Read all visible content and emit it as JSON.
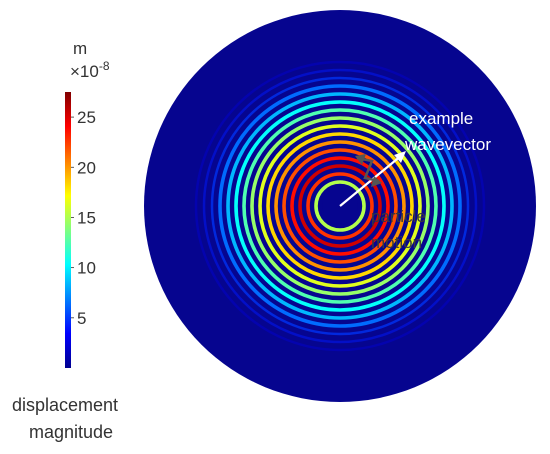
{
  "colorbar": {
    "unit": "m",
    "exponent_base": "×10",
    "exponent_power": "-8",
    "ticks": [
      "25",
      "20",
      "15",
      "10",
      "5"
    ],
    "tick_values": [
      25,
      20,
      15,
      10,
      5
    ],
    "range": [
      0,
      27.5
    ],
    "caption_line1": "displacement",
    "caption_line2": "magnitude"
  },
  "annotations": {
    "wavevector_line1": "example",
    "wavevector_line2": "wavevector",
    "particle_line1": "particle",
    "particle_line2": "motion"
  },
  "colors": {
    "background_blue": "#06058f",
    "arrow_white": "#ffffff",
    "arrow_dark": "#555555"
  }
}
